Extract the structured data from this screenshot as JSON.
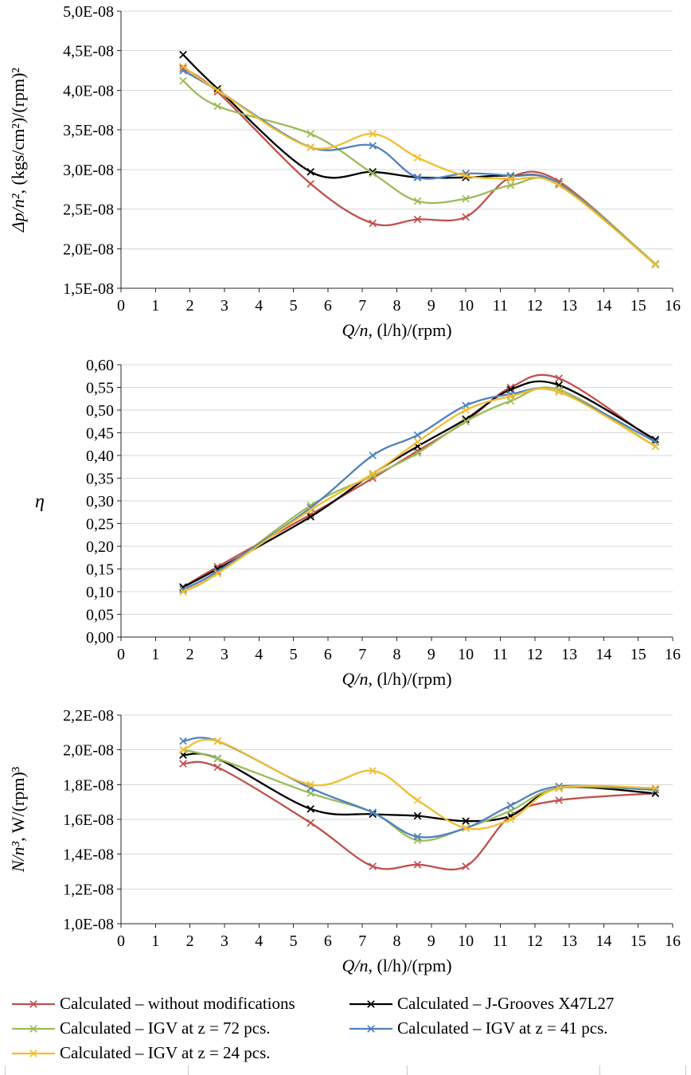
{
  "page": {
    "background": "#FFFFFF"
  },
  "legend": {
    "items": [
      {
        "key": "red",
        "label": "Calculated – without modifications",
        "color": "#C0504D"
      },
      {
        "key": "black",
        "label": "Calculated – J-Grooves X47L27",
        "color": "#000000"
      },
      {
        "key": "green",
        "label": "Calculated – IGV at z = 72 pcs.",
        "color": "#9BBB59"
      },
      {
        "key": "blue",
        "label": "Calculated – IGV at z = 41 pcs.",
        "color": "#4F81BD"
      },
      {
        "key": "yellow",
        "label": "Calculated – IGV at z = 24 pcs.",
        "color": "#F2BD2E"
      }
    ]
  },
  "chart_data": [
    {
      "type": "line",
      "name": "pressure-coefficient",
      "title": "",
      "xlabel": "Q/n, (l/h)/(rpm)",
      "ylabel": "Δp/n², (kgs/cm²)/(rpm)²",
      "xlabel_segments": [
        {
          "t": "Q/n",
          "i": true
        },
        {
          "t": ", (l/h)/(rpm)",
          "i": false
        }
      ],
      "ylabel_segments": [
        {
          "t": "Δp/n²",
          "i": true
        },
        {
          "t": ", (kgs/cm²)/(rpm)²",
          "i": false
        }
      ],
      "xlim": [
        0,
        16
      ],
      "ylim": [
        1.5e-08,
        5e-08
      ],
      "grid": "horizontal",
      "marker": "x",
      "legend_position": "shared-bottom",
      "x_ticks": [
        0,
        1,
        2,
        3,
        4,
        5,
        6,
        7,
        8,
        9,
        10,
        11,
        12,
        13,
        14,
        15,
        16
      ],
      "y_ticks": [
        {
          "v": 5e-08,
          "label": "5,0E-08"
        },
        {
          "v": 4.5e-08,
          "label": "4,5E-08"
        },
        {
          "v": 4e-08,
          "label": "4,0E-08"
        },
        {
          "v": 3.5e-08,
          "label": "3,5E-08"
        },
        {
          "v": 3e-08,
          "label": "3,0E-08"
        },
        {
          "v": 2.5e-08,
          "label": "2,5E-08"
        },
        {
          "v": 2e-08,
          "label": "2,0E-08"
        },
        {
          "v": 1.5e-08,
          "label": "1,5E-08"
        }
      ],
      "x": [
        1.8,
        2.8,
        5.5,
        7.3,
        8.6,
        10,
        11.3,
        12.7,
        15.5
      ],
      "series": [
        {
          "key": "red",
          "name": "Calculated – without modifications",
          "color": "#C0504D",
          "values": [
            4.28e-08,
            3.98e-08,
            2.82e-08,
            2.32e-08,
            2.37e-08,
            2.4e-08,
            2.9e-08,
            2.85e-08,
            1.8e-08
          ]
        },
        {
          "key": "black",
          "name": "Calculated – J-Grooves X47L27",
          "color": "#000000",
          "values": [
            4.45e-08,
            4.02e-08,
            2.97e-08,
            2.97e-08,
            2.9e-08,
            2.9e-08,
            2.92e-08,
            2.82e-08,
            1.8e-08
          ]
        },
        {
          "key": "green",
          "name": "Calculated – IGV at z = 72 pcs.",
          "color": "#9BBB59",
          "values": [
            4.12e-08,
            3.8e-08,
            3.45e-08,
            2.95e-08,
            2.6e-08,
            2.63e-08,
            2.8e-08,
            2.82e-08,
            1.81e-08
          ]
        },
        {
          "key": "blue",
          "name": "Calculated – IGV at z = 41 pcs.",
          "color": "#4F81BD",
          "values": [
            4.25e-08,
            4e-08,
            3.28e-08,
            3.3e-08,
            2.9e-08,
            2.95e-08,
            2.92e-08,
            2.82e-08,
            1.8e-08
          ]
        },
        {
          "key": "yellow",
          "name": "Calculated – IGV at z = 24 pcs.",
          "color": "#F2BD2E",
          "values": [
            4.3e-08,
            4e-08,
            3.28e-08,
            3.45e-08,
            3.15e-08,
            2.92e-08,
            2.88e-08,
            2.8e-08,
            1.8e-08
          ]
        }
      ]
    },
    {
      "type": "line",
      "name": "efficiency",
      "title": "",
      "xlabel": "Q/n, (l/h)/(rpm)",
      "ylabel": "η",
      "xlabel_segments": [
        {
          "t": "Q/n",
          "i": true
        },
        {
          "t": ", (l/h)/(rpm)",
          "i": false
        }
      ],
      "ylabel_segments": [
        {
          "t": "η",
          "i": true
        }
      ],
      "xlim": [
        0,
        16
      ],
      "ylim": [
        0.0,
        0.6
      ],
      "grid": "horizontal",
      "marker": "x",
      "legend_position": "shared-bottom",
      "x_ticks": [
        0,
        1,
        2,
        3,
        4,
        5,
        6,
        7,
        8,
        9,
        10,
        11,
        12,
        13,
        14,
        15,
        16
      ],
      "y_ticks": [
        {
          "v": 0.6,
          "label": "0,60"
        },
        {
          "v": 0.55,
          "label": "0,55"
        },
        {
          "v": 0.5,
          "label": "0,50"
        },
        {
          "v": 0.45,
          "label": "0,45"
        },
        {
          "v": 0.4,
          "label": "0,40"
        },
        {
          "v": 0.35,
          "label": "0,35"
        },
        {
          "v": 0.3,
          "label": "0,30"
        },
        {
          "v": 0.25,
          "label": "0,25"
        },
        {
          "v": 0.2,
          "label": "0,20"
        },
        {
          "v": 0.15,
          "label": "0,15"
        },
        {
          "v": 0.1,
          "label": "0,10"
        },
        {
          "v": 0.05,
          "label": "0,05"
        },
        {
          "v": 0.0,
          "label": "0,00"
        }
      ],
      "x": [
        1.8,
        2.8,
        5.5,
        7.3,
        8.6,
        10,
        11.3,
        12.7,
        15.5
      ],
      "series": [
        {
          "key": "red",
          "name": "Calculated – without modifications",
          "color": "#C0504D",
          "values": [
            0.11,
            0.155,
            0.27,
            0.35,
            0.41,
            0.475,
            0.55,
            0.57,
            0.43
          ]
        },
        {
          "key": "black",
          "name": "Calculated – J-Grooves X47L27",
          "color": "#000000",
          "values": [
            0.11,
            0.15,
            0.265,
            0.36,
            0.42,
            0.48,
            0.545,
            0.555,
            0.435
          ]
        },
        {
          "key": "green",
          "name": "Calculated – IGV at z = 72 pcs.",
          "color": "#9BBB59",
          "values": [
            0.1,
            0.14,
            0.29,
            0.355,
            0.405,
            0.475,
            0.52,
            0.545,
            0.42
          ]
        },
        {
          "key": "blue",
          "name": "Calculated – IGV at z = 41 pcs.",
          "color": "#4F81BD",
          "values": [
            0.105,
            0.145,
            0.285,
            0.4,
            0.445,
            0.51,
            0.535,
            0.54,
            0.43
          ]
        },
        {
          "key": "yellow",
          "name": "Calculated – IGV at z = 24 pcs.",
          "color": "#F2BD2E",
          "values": [
            0.1,
            0.14,
            0.28,
            0.36,
            0.43,
            0.5,
            0.53,
            0.54,
            0.42
          ]
        }
      ]
    },
    {
      "type": "line",
      "name": "power-coefficient",
      "title": "",
      "xlabel": "Q/n, (l/h)/(rpm)",
      "ylabel": "N/n³, W/(rpm)³",
      "xlabel_segments": [
        {
          "t": "Q/n",
          "i": true
        },
        {
          "t": ", (l/h)/(rpm)",
          "i": false
        }
      ],
      "ylabel_segments": [
        {
          "t": "N/n³",
          "i": true
        },
        {
          "t": ", W/(rpm)³",
          "i": false
        }
      ],
      "xlim": [
        0,
        16
      ],
      "ylim": [
        1e-08,
        2.2e-08
      ],
      "grid": "horizontal",
      "marker": "x",
      "legend_position": "shared-bottom",
      "x_ticks": [
        0,
        1,
        2,
        3,
        4,
        5,
        6,
        7,
        8,
        9,
        10,
        11,
        12,
        13,
        14,
        15,
        16
      ],
      "y_ticks": [
        {
          "v": 2.2e-08,
          "label": "2,2E-08"
        },
        {
          "v": 2e-08,
          "label": "2,0E-08"
        },
        {
          "v": 1.8e-08,
          "label": "1,8E-08"
        },
        {
          "v": 1.6e-08,
          "label": "1,6E-08"
        },
        {
          "v": 1.4e-08,
          "label": "1,4E-08"
        },
        {
          "v": 1.2e-08,
          "label": "1,2E-08"
        },
        {
          "v": 1e-08,
          "label": "1,0E-08"
        }
      ],
      "x": [
        1.8,
        2.8,
        5.5,
        7.3,
        8.6,
        10,
        11.3,
        12.7,
        15.5
      ],
      "series": [
        {
          "key": "red",
          "name": "Calculated – without modifications",
          "color": "#C0504D",
          "values": [
            1.92e-08,
            1.9e-08,
            1.58e-08,
            1.33e-08,
            1.34e-08,
            1.33e-08,
            1.62e-08,
            1.71e-08,
            1.75e-08
          ]
        },
        {
          "key": "black",
          "name": "Calculated – J-Grooves X47L27",
          "color": "#000000",
          "values": [
            1.97e-08,
            1.95e-08,
            1.66e-08,
            1.63e-08,
            1.62e-08,
            1.59e-08,
            1.62e-08,
            1.78e-08,
            1.75e-08
          ]
        },
        {
          "key": "green",
          "name": "Calculated – IGV at z = 72 pcs.",
          "color": "#9BBB59",
          "values": [
            2e-08,
            1.95e-08,
            1.75e-08,
            1.64e-08,
            1.48e-08,
            1.55e-08,
            1.65e-08,
            1.78e-08,
            1.77e-08
          ]
        },
        {
          "key": "blue",
          "name": "Calculated – IGV at z = 41 pcs.",
          "color": "#4F81BD",
          "values": [
            2.05e-08,
            2.05e-08,
            1.78e-08,
            1.64e-08,
            1.5e-08,
            1.55e-08,
            1.68e-08,
            1.79e-08,
            1.77e-08
          ]
        },
        {
          "key": "yellow",
          "name": "Calculated – IGV at z = 24 pcs.",
          "color": "#F2BD2E",
          "values": [
            2e-08,
            2.05e-08,
            1.8e-08,
            1.88e-08,
            1.71e-08,
            1.55e-08,
            1.6e-08,
            1.78e-08,
            1.78e-08
          ]
        }
      ]
    }
  ]
}
